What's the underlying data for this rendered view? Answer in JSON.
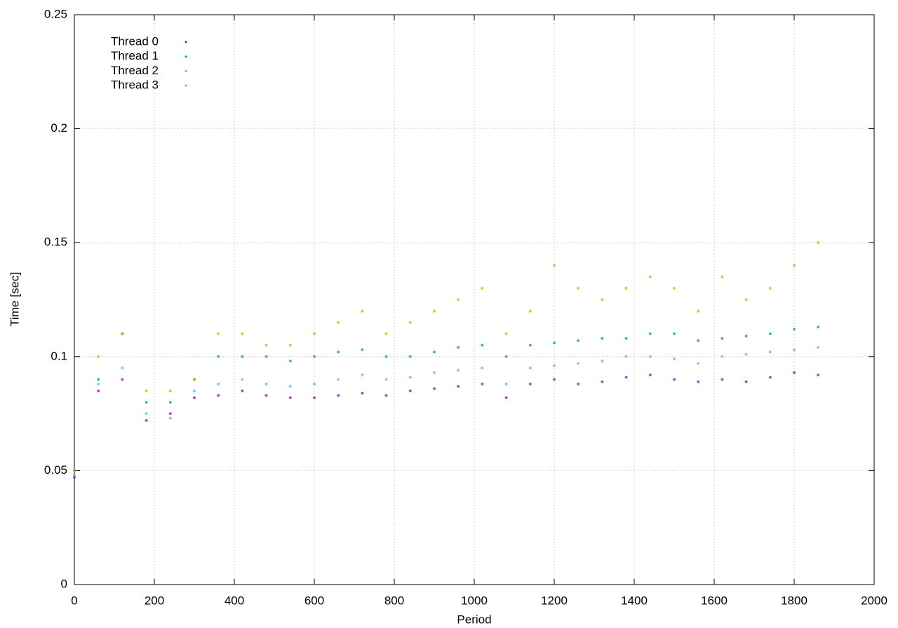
{
  "chart_data": {
    "type": "scatter",
    "xlabel": "Period",
    "ylabel": "Time [sec]",
    "x": [
      0,
      60,
      120,
      180,
      240,
      300,
      360,
      420,
      480,
      540,
      600,
      660,
      720,
      780,
      840,
      900,
      960,
      1020,
      1080,
      1140,
      1200,
      1260,
      1320,
      1380,
      1440,
      1500,
      1560,
      1620,
      1680,
      1740,
      1800,
      1860
    ],
    "series": [
      {
        "name": "Thread 0",
        "color": "#9400d3",
        "values": [
          0.047,
          0.085,
          0.09,
          0.072,
          0.075,
          0.082,
          0.083,
          0.085,
          0.083,
          0.082,
          0.082,
          0.083,
          0.084,
          0.083,
          0.085,
          0.086,
          0.087,
          0.088,
          0.082,
          0.088,
          0.09,
          0.088,
          0.089,
          0.091,
          0.092,
          0.09,
          0.089,
          0.09,
          0.089,
          0.091,
          0.093,
          0.092
        ]
      },
      {
        "name": "Thread 1",
        "color": "#009e73",
        "values": [
          0.05,
          0.09,
          0.11,
          0.08,
          0.08,
          0.09,
          0.1,
          0.1,
          0.1,
          0.098,
          0.1,
          0.102,
          0.103,
          0.1,
          0.1,
          0.102,
          0.104,
          0.105,
          0.1,
          0.105,
          0.106,
          0.107,
          0.108,
          0.108,
          0.11,
          0.11,
          0.107,
          0.108,
          0.109,
          0.11,
          0.112,
          0.113
        ]
      },
      {
        "name": "Thread 2",
        "color": "#56b4e9",
        "values": [
          0.048,
          0.088,
          0.095,
          0.075,
          0.073,
          0.085,
          0.088,
          0.09,
          0.088,
          0.087,
          0.088,
          0.09,
          0.092,
          0.09,
          0.091,
          0.093,
          0.094,
          0.095,
          0.088,
          0.095,
          0.096,
          0.097,
          0.098,
          0.1,
          0.1,
          0.099,
          0.097,
          0.1,
          0.101,
          0.102,
          0.103,
          0.104
        ]
      },
      {
        "name": "Thread 3",
        "color": "#e69f00",
        "values": [
          0.05,
          0.1,
          0.11,
          0.085,
          0.085,
          0.09,
          0.11,
          0.11,
          0.105,
          0.105,
          0.11,
          0.115,
          0.12,
          0.11,
          0.115,
          0.12,
          0.125,
          0.13,
          0.11,
          0.12,
          0.14,
          0.13,
          0.125,
          0.13,
          0.135,
          0.13,
          0.12,
          0.135,
          0.125,
          0.13,
          0.14,
          0.15
        ]
      }
    ],
    "xlim": [
      0,
      2000
    ],
    "xticks": [
      0,
      200,
      400,
      600,
      800,
      1000,
      1200,
      1400,
      1600,
      1800,
      2000
    ],
    "ylim": [
      0,
      0.25
    ],
    "yticks": [
      0,
      0.05,
      0.1,
      0.15,
      0.2,
      0.25
    ],
    "grid": true,
    "legend": "top-left"
  }
}
